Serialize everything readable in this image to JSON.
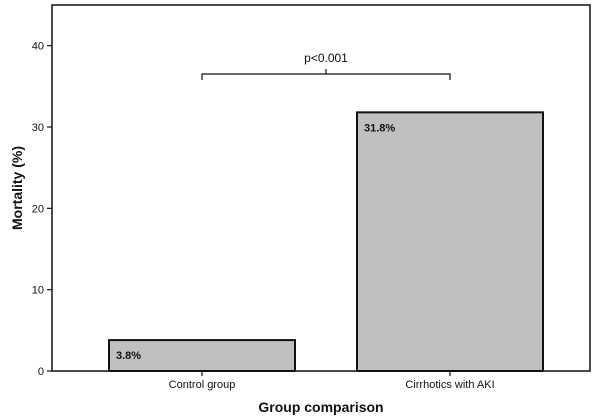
{
  "chart_data": {
    "type": "bar",
    "title": "",
    "xlabel": "Group comparison",
    "ylabel": "Mortality (%)",
    "categories": [
      "Control group",
      "Cirrhotics with AKI"
    ],
    "values": [
      3.8,
      31.8
    ],
    "data_labels": [
      "3.8%",
      "31.8%"
    ],
    "ylim": [
      0,
      45
    ],
    "yticks": [
      0,
      10,
      20,
      30,
      40
    ],
    "grid": false,
    "legend": "none",
    "bar_color": "#c0c0c0",
    "bar_edge_color": "#111111",
    "annotation": {
      "text": "p<0.001",
      "between": [
        0,
        1
      ]
    }
  }
}
